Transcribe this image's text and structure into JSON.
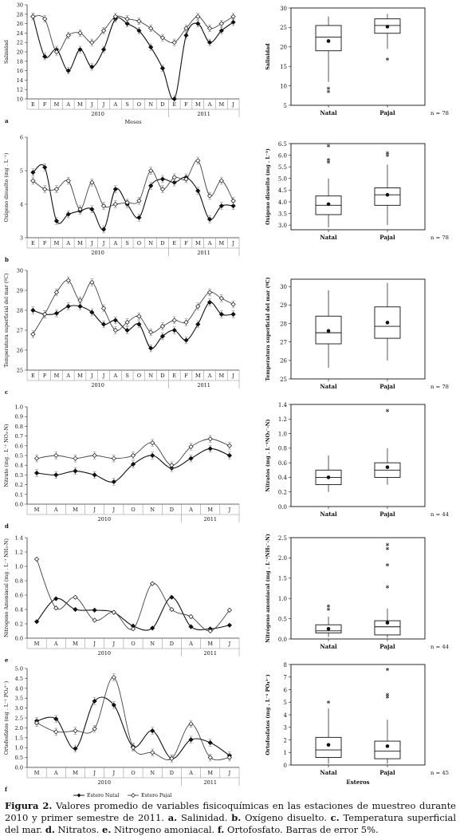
{
  "caption": {
    "text": "Figura 2. Valores promedio de variables fisicoquímicas en las estaciones de muestreo  durante 2010 y primer semestre de 2011. a. Salinidad. b. Oxígeno disuelto. c. Temperatura superficial del mar. d. Nitratos. e. Nitrogeno amoniacal. f. Ortofosfato. Barras de error 5%."
  },
  "legend": {
    "natal": "Estero Natal",
    "pajal": "Estero Pajal"
  },
  "chart_data": [
    {
      "id": "a-line",
      "type": "line",
      "panel_letter": "a",
      "ylabel": "Salinidad",
      "xlabel": "Meses",
      "ylim": [
        10,
        30
      ],
      "yticks": [
        10,
        12,
        14,
        16,
        18,
        20,
        22,
        24,
        26,
        28,
        30
      ],
      "categories": [
        "E",
        "F",
        "M",
        "A",
        "M",
        "J",
        "J",
        "A",
        "S",
        "O",
        "N",
        "D",
        "E",
        "F",
        "M",
        "A",
        "M",
        "J"
      ],
      "year_groups": [
        {
          "label": "2010",
          "start": 0,
          "end": 12
        },
        {
          "label": "2011",
          "start": 12,
          "end": 18
        }
      ],
      "error_bars": true,
      "series": [
        {
          "name": "Estero Natal",
          "values": [
            27.5,
            19.0,
            20.5,
            16.0,
            20.5,
            16.8,
            20.5,
            27.0,
            26.0,
            24.5,
            21.0,
            16.5,
            10.0,
            23.5,
            26.0,
            22.0,
            24.5,
            26.3
          ]
        },
        {
          "name": "Estero Pajal",
          "values": [
            27.5,
            27.0,
            20.0,
            23.5,
            24.0,
            22.0,
            24.5,
            27.5,
            27.0,
            26.5,
            25.0,
            23.0,
            22.0,
            25.0,
            27.5,
            25.0,
            26.0,
            27.5
          ]
        }
      ]
    },
    {
      "id": "a-box",
      "type": "box",
      "ylabel": "Salinidad",
      "ylim": [
        5,
        30
      ],
      "yticks": [
        5,
        10,
        15,
        20,
        25,
        30
      ],
      "categories": [
        "Natal",
        "Pajal"
      ],
      "n_label": "n = 78",
      "xlabel": "",
      "boxes": [
        {
          "min": 11.0,
          "q1": 19.0,
          "median": 22.5,
          "q3": 25.5,
          "max": 27.8,
          "mean": 21.5,
          "outliers": [
            9.0,
            8.2
          ]
        },
        {
          "min": 19.5,
          "q1": 23.5,
          "median": 25.5,
          "q3": 27.2,
          "max": 28.5,
          "mean": 25.2,
          "outliers": [
            16.5
          ]
        }
      ]
    },
    {
      "id": "b-line",
      "type": "line",
      "panel_letter": "b",
      "ylabel": "Oxígeno disuelto (mg . L⁻¹)",
      "xlabel": "",
      "ylim": [
        3,
        6
      ],
      "yticks": [
        3,
        4,
        5,
        6
      ],
      "categories": [
        "E",
        "F",
        "M",
        "A",
        "M",
        "J",
        "J",
        "A",
        "S",
        "O",
        "N",
        "D",
        "E",
        "F",
        "M",
        "A",
        "M",
        "J"
      ],
      "year_groups": [
        {
          "label": "2010",
          "start": 0,
          "end": 12
        },
        {
          "label": "2011",
          "start": 12,
          "end": 18
        }
      ],
      "error_bars": true,
      "series": [
        {
          "name": "Estero Natal",
          "values": [
            4.95,
            5.1,
            3.5,
            3.7,
            3.8,
            3.85,
            3.25,
            4.45,
            4.0,
            3.6,
            4.55,
            4.75,
            4.65,
            4.8,
            4.4,
            3.55,
            3.95,
            3.95
          ]
        },
        {
          "name": "Estero Pajal",
          "values": [
            4.7,
            4.45,
            4.45,
            4.7,
            3.85,
            4.65,
            3.95,
            4.0,
            4.05,
            4.1,
            5.0,
            4.45,
            4.8,
            4.75,
            5.3,
            4.25,
            4.7,
            4.1
          ]
        }
      ]
    },
    {
      "id": "b-box",
      "type": "box",
      "ylabel": "Oxígeno disuelto (mg . L⁻¹)",
      "ylim": [
        2.8,
        6.5
      ],
      "yticks": [
        3.0,
        3.5,
        4.0,
        4.5,
        5.0,
        5.5,
        6.0,
        6.5
      ],
      "categories": [
        "Natal",
        "Pajal"
      ],
      "n_label": "n = 78",
      "xlabel": "",
      "boxes": [
        {
          "min": 2.9,
          "q1": 3.45,
          "median": 3.85,
          "q3": 4.25,
          "max": 5.0,
          "mean": 3.9,
          "outliers": [
            5.65,
            5.75,
            6.35
          ]
        },
        {
          "min": 3.0,
          "q1": 3.85,
          "median": 4.3,
          "q3": 4.6,
          "max": 5.6,
          "mean": 4.3,
          "outliers": [
            5.95,
            6.05
          ]
        }
      ]
    },
    {
      "id": "c-line",
      "type": "line",
      "panel_letter": "c",
      "ylabel": "Temperatura superficial del mar (ºC)",
      "xlabel": "",
      "ylim": [
        25,
        30
      ],
      "yticks": [
        25,
        26,
        27,
        28,
        29,
        30
      ],
      "categories": [
        "E",
        "F",
        "M",
        "A",
        "M",
        "J",
        "J",
        "A",
        "S",
        "O",
        "N",
        "D",
        "E",
        "F",
        "M",
        "A",
        "M",
        "J"
      ],
      "year_groups": [
        {
          "label": "2010",
          "start": 0,
          "end": 12
        },
        {
          "label": "2011",
          "start": 12,
          "end": 18
        }
      ],
      "error_bars": true,
      "series": [
        {
          "name": "Estero Natal",
          "values": [
            28.0,
            27.8,
            27.85,
            28.2,
            28.2,
            27.9,
            27.3,
            27.5,
            27.0,
            27.3,
            26.1,
            26.7,
            27.0,
            26.5,
            27.3,
            28.4,
            27.8,
            27.8
          ]
        },
        {
          "name": "Estero Pajal",
          "values": [
            26.8,
            27.8,
            28.9,
            29.5,
            28.5,
            29.4,
            28.1,
            27.0,
            27.4,
            27.7,
            26.9,
            27.2,
            27.5,
            27.4,
            28.2,
            28.9,
            28.6,
            28.3
          ]
        }
      ]
    },
    {
      "id": "c-box",
      "type": "box",
      "ylabel": "Temperatura superficial del mar (ºC)",
      "ylim": [
        25,
        30.4
      ],
      "yticks": [
        25,
        26,
        27,
        28,
        29,
        30
      ],
      "categories": [
        "Natal",
        "Pajal"
      ],
      "n_label": "n = 78",
      "xlabel": "",
      "boxes": [
        {
          "min": 25.6,
          "q1": 26.9,
          "median": 27.5,
          "q3": 28.4,
          "max": 29.8,
          "mean": 27.6,
          "outliers": []
        },
        {
          "min": 26.0,
          "q1": 27.2,
          "median": 27.85,
          "q3": 28.9,
          "max": 30.2,
          "mean": 28.05,
          "outliers": []
        }
      ]
    },
    {
      "id": "d-line",
      "type": "line",
      "panel_letter": "d",
      "ylabel": "Nitrato (mg . L⁻¹ NO₃-N)",
      "xlabel": "",
      "ylim": [
        0,
        1
      ],
      "yticks": [
        0.0,
        0.1,
        0.2,
        0.3,
        0.4,
        0.5,
        0.6,
        0.7,
        0.8,
        0.9,
        1.0
      ],
      "categories": [
        "M",
        "A",
        "M",
        "J",
        "J",
        "O",
        "N",
        "D",
        "A",
        "M",
        "J"
      ],
      "year_groups": [
        {
          "label": "2010",
          "start": 0,
          "end": 8
        },
        {
          "label": "2011",
          "start": 8,
          "end": 11
        }
      ],
      "error_bars": true,
      "series": [
        {
          "name": "Estero Natal",
          "values": [
            0.32,
            0.3,
            0.34,
            0.3,
            0.23,
            0.41,
            0.5,
            0.37,
            0.47,
            0.57,
            0.5
          ]
        },
        {
          "name": "Estero Pajal",
          "values": [
            0.47,
            0.5,
            0.47,
            0.5,
            0.47,
            0.5,
            0.63,
            0.4,
            0.59,
            0.67,
            0.6
          ]
        }
      ]
    },
    {
      "id": "d-box",
      "type": "box",
      "ylabel": "Nitratos (mg . L⁻¹NO₃⁻-N)",
      "ylim": [
        0,
        1.4
      ],
      "yticks": [
        0.0,
        0.2,
        0.4,
        0.6,
        0.8,
        1.0,
        1.2,
        1.4
      ],
      "categories": [
        "Natal",
        "Pajal"
      ],
      "n_label": "n = 44",
      "xlabel": "",
      "boxes": [
        {
          "min": 0.2,
          "q1": 0.3,
          "median": 0.4,
          "q3": 0.5,
          "max": 0.7,
          "mean": 0.4,
          "outliers": []
        },
        {
          "min": 0.3,
          "q1": 0.4,
          "median": 0.5,
          "q3": 0.6,
          "max": 0.8,
          "mean": 0.54,
          "outliers": [
            1.3
          ]
        }
      ]
    },
    {
      "id": "e-line",
      "type": "line",
      "panel_letter": "e",
      "ylabel": "Nitrogeno Amoniacal (mg . L⁻¹ NH₃-N)",
      "xlabel": "",
      "ylim": [
        0,
        1.4
      ],
      "yticks": [
        0.0,
        0.2,
        0.4,
        0.6,
        0.8,
        1.0,
        1.2,
        1.4
      ],
      "categories": [
        "M",
        "A",
        "M",
        "J",
        "J",
        "O",
        "N",
        "D",
        "A",
        "M",
        "J"
      ],
      "year_groups": [
        {
          "label": "2010",
          "start": 0,
          "end": 8
        },
        {
          "label": "2011",
          "start": 8,
          "end": 11
        }
      ],
      "error_bars": false,
      "series": [
        {
          "name": "Estero Natal",
          "values": [
            0.23,
            0.55,
            0.4,
            0.39,
            0.36,
            0.17,
            0.14,
            0.57,
            0.16,
            0.13,
            0.18
          ]
        },
        {
          "name": "Estero Pajal",
          "values": [
            1.1,
            0.42,
            0.57,
            0.25,
            0.36,
            0.13,
            0.76,
            0.4,
            0.3,
            0.1,
            0.39
          ]
        }
      ]
    },
    {
      "id": "e-box",
      "type": "box",
      "ylabel": "Nitrógeno amoniacal (mg . L⁻¹NH₃⁻-N)",
      "ylim": [
        0,
        2.5
      ],
      "yticks": [
        0.0,
        0.5,
        1.0,
        1.5,
        2.0,
        2.5
      ],
      "categories": [
        "Natal",
        "Pajal"
      ],
      "n_label": "n = 44",
      "xlabel": "",
      "boxes": [
        {
          "min": 0.05,
          "q1": 0.15,
          "median": 0.2,
          "q3": 0.35,
          "max": 0.55,
          "mean": 0.25,
          "outliers": [
            0.7,
            0.78
          ]
        },
        {
          "min": 0.03,
          "q1": 0.1,
          "median": 0.3,
          "q3": 0.45,
          "max": 0.75,
          "mean": 0.4,
          "outliers": [
            1.25,
            1.8,
            2.2,
            2.3
          ]
        }
      ]
    },
    {
      "id": "f-line",
      "type": "line",
      "panel_letter": "f",
      "ylabel": "Ortofosfatos (mg . L⁻¹ PO₄³⁻)",
      "xlabel": "",
      "ylim": [
        0,
        5
      ],
      "yticks": [
        0.0,
        0.5,
        1.0,
        1.5,
        2.0,
        2.5,
        3.0,
        3.5,
        4.0,
        4.5,
        5.0
      ],
      "categories": [
        "M",
        "A",
        "M",
        "J",
        "J",
        "O",
        "N",
        "D",
        "A",
        "M",
        "J"
      ],
      "year_groups": [
        {
          "label": "2010",
          "start": 0,
          "end": 8
        },
        {
          "label": "2011",
          "start": 8,
          "end": 11
        }
      ],
      "error_bars": true,
      "series": [
        {
          "name": "Estero Natal",
          "values": [
            2.35,
            2.45,
            0.95,
            3.35,
            3.15,
            1.05,
            1.85,
            0.45,
            1.4,
            1.25,
            0.6
          ]
        },
        {
          "name": "Estero Pajal",
          "values": [
            2.25,
            1.8,
            1.85,
            1.95,
            4.55,
            1.0,
            0.75,
            0.45,
            2.2,
            0.5,
            0.5
          ]
        }
      ]
    },
    {
      "id": "f-box",
      "type": "box",
      "ylabel": "Ortofosfatos (mg . L⁻¹ PO₄³⁻)",
      "ylim": [
        0,
        8
      ],
      "yticks": [
        0,
        1,
        2,
        3,
        4,
        5,
        6,
        7,
        8
      ],
      "categories": [
        "Natal",
        "Pajal"
      ],
      "n_label": "n = 45",
      "xlabel": "Esteros",
      "boxes": [
        {
          "min": 0.1,
          "q1": 0.6,
          "median": 1.2,
          "q3": 2.2,
          "max": 4.5,
          "mean": 1.6,
          "outliers": [
            4.9
          ]
        },
        {
          "min": 0.1,
          "q1": 0.5,
          "median": 1.1,
          "q3": 1.9,
          "max": 3.6,
          "mean": 1.5,
          "outliers": [
            5.3,
            5.5,
            7.5
          ]
        }
      ]
    }
  ]
}
